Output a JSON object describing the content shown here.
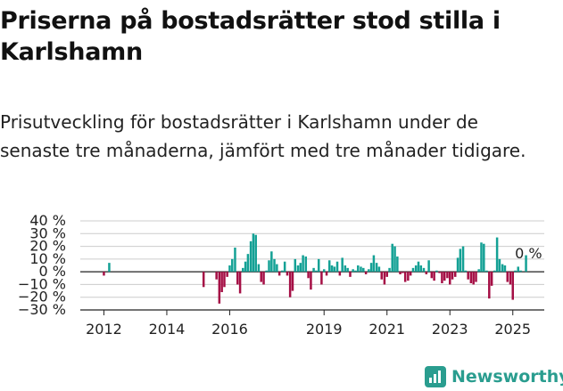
{
  "header": {
    "title": "Priserna på bostadsrätter stod stilla i Karlshamn",
    "subtitle": "Prisutveckling för bostadsrätter i Karlshamn under de senaste tre månaderna, jämfört med tre månader tidigare."
  },
  "brand": {
    "name": "Newsworthy",
    "icon": "bar-chart-icon"
  },
  "chart_data": {
    "type": "bar",
    "title": "",
    "xlabel": "",
    "ylabel": "",
    "ylim": [
      -30,
      40
    ],
    "yticks": [
      -30,
      -20,
      -10,
      0,
      10,
      20,
      30,
      40
    ],
    "ytick_labels": [
      "−30 %",
      "−20 %",
      "−10 %",
      "0 %",
      "10 %",
      "20 %",
      "30 %",
      "40 %"
    ],
    "xlim": [
      2011.25,
      2026.0
    ],
    "xticks": [
      2012,
      2014,
      2016,
      2019,
      2021,
      2023,
      2025
    ],
    "xtick_labels": [
      "2012",
      "2014",
      "2016",
      "2019",
      "2021",
      "2023",
      "2025"
    ],
    "grid": true,
    "colors": {
      "positive": "#14a195",
      "negative": "#a50f45",
      "axis": "#222222",
      "grid": "#cccccc"
    },
    "annotation": {
      "text": "0 %",
      "x": 2025.5,
      "y": 0
    },
    "x": [
      2012.0,
      2012.17,
      2015.17,
      2015.58,
      2015.67,
      2015.75,
      2015.83,
      2015.92,
      2016.0,
      2016.08,
      2016.17,
      2016.25,
      2016.33,
      2016.42,
      2016.5,
      2016.58,
      2016.67,
      2016.75,
      2016.83,
      2016.92,
      2017.0,
      2017.08,
      2017.17,
      2017.25,
      2017.33,
      2017.42,
      2017.5,
      2017.58,
      2017.67,
      2017.75,
      2017.83,
      2017.92,
      2018.0,
      2018.08,
      2018.17,
      2018.25,
      2018.33,
      2018.42,
      2018.5,
      2018.58,
      2018.67,
      2018.75,
      2018.83,
      2018.92,
      2019.0,
      2019.08,
      2019.17,
      2019.25,
      2019.33,
      2019.42,
      2019.5,
      2019.58,
      2019.67,
      2019.75,
      2019.83,
      2019.92,
      2020.0,
      2020.08,
      2020.17,
      2020.25,
      2020.33,
      2020.42,
      2020.5,
      2020.58,
      2020.67,
      2020.75,
      2020.83,
      2020.92,
      2021.0,
      2021.08,
      2021.17,
      2021.25,
      2021.33,
      2021.42,
      2021.5,
      2021.58,
      2021.67,
      2021.75,
      2021.83,
      2021.92,
      2022.0,
      2022.08,
      2022.17,
      2022.25,
      2022.33,
      2022.42,
      2022.5,
      2022.58,
      2022.67,
      2022.75,
      2022.83,
      2022.92,
      2023.0,
      2023.08,
      2023.17,
      2023.25,
      2023.33,
      2023.42,
      2023.5,
      2023.58,
      2023.67,
      2023.75,
      2023.83,
      2023.92,
      2024.0,
      2024.08,
      2024.17,
      2024.25,
      2024.33,
      2024.42,
      2024.5,
      2024.58,
      2024.67,
      2024.75,
      2024.83,
      2024.92,
      2025.0,
      2025.08,
      2025.17,
      2025.25,
      2025.42
    ],
    "values": [
      -3,
      7,
      -12,
      -6,
      -25,
      -16,
      -12,
      -4,
      5,
      10,
      19,
      -10,
      -17,
      3,
      8,
      14,
      24,
      30,
      29,
      6,
      -8,
      -10,
      1,
      9,
      16,
      10,
      6,
      -3,
      1,
      8,
      -3,
      -20,
      -15,
      10,
      5,
      7,
      13,
      12,
      -5,
      -14,
      3,
      1,
      10,
      -10,
      2,
      -3,
      9,
      5,
      4,
      8,
      -3,
      11,
      5,
      3,
      -4,
      2,
      1,
      5,
      4,
      3,
      -2,
      2,
      7,
      13,
      7,
      4,
      -6,
      -10,
      -4,
      3,
      22,
      20,
      12,
      -2,
      -1,
      -8,
      -7,
      -3,
      3,
      5,
      8,
      5,
      3,
      -2,
      9,
      -5,
      -7,
      1,
      -1,
      -9,
      -7,
      -5,
      -10,
      -6,
      -4,
      11,
      18,
      20,
      1,
      -6,
      -9,
      -10,
      -8,
      2,
      23,
      22,
      1,
      -21,
      -11,
      1,
      27,
      10,
      6,
      5,
      -8,
      -10,
      -22,
      1,
      4,
      1,
      13
    ]
  }
}
